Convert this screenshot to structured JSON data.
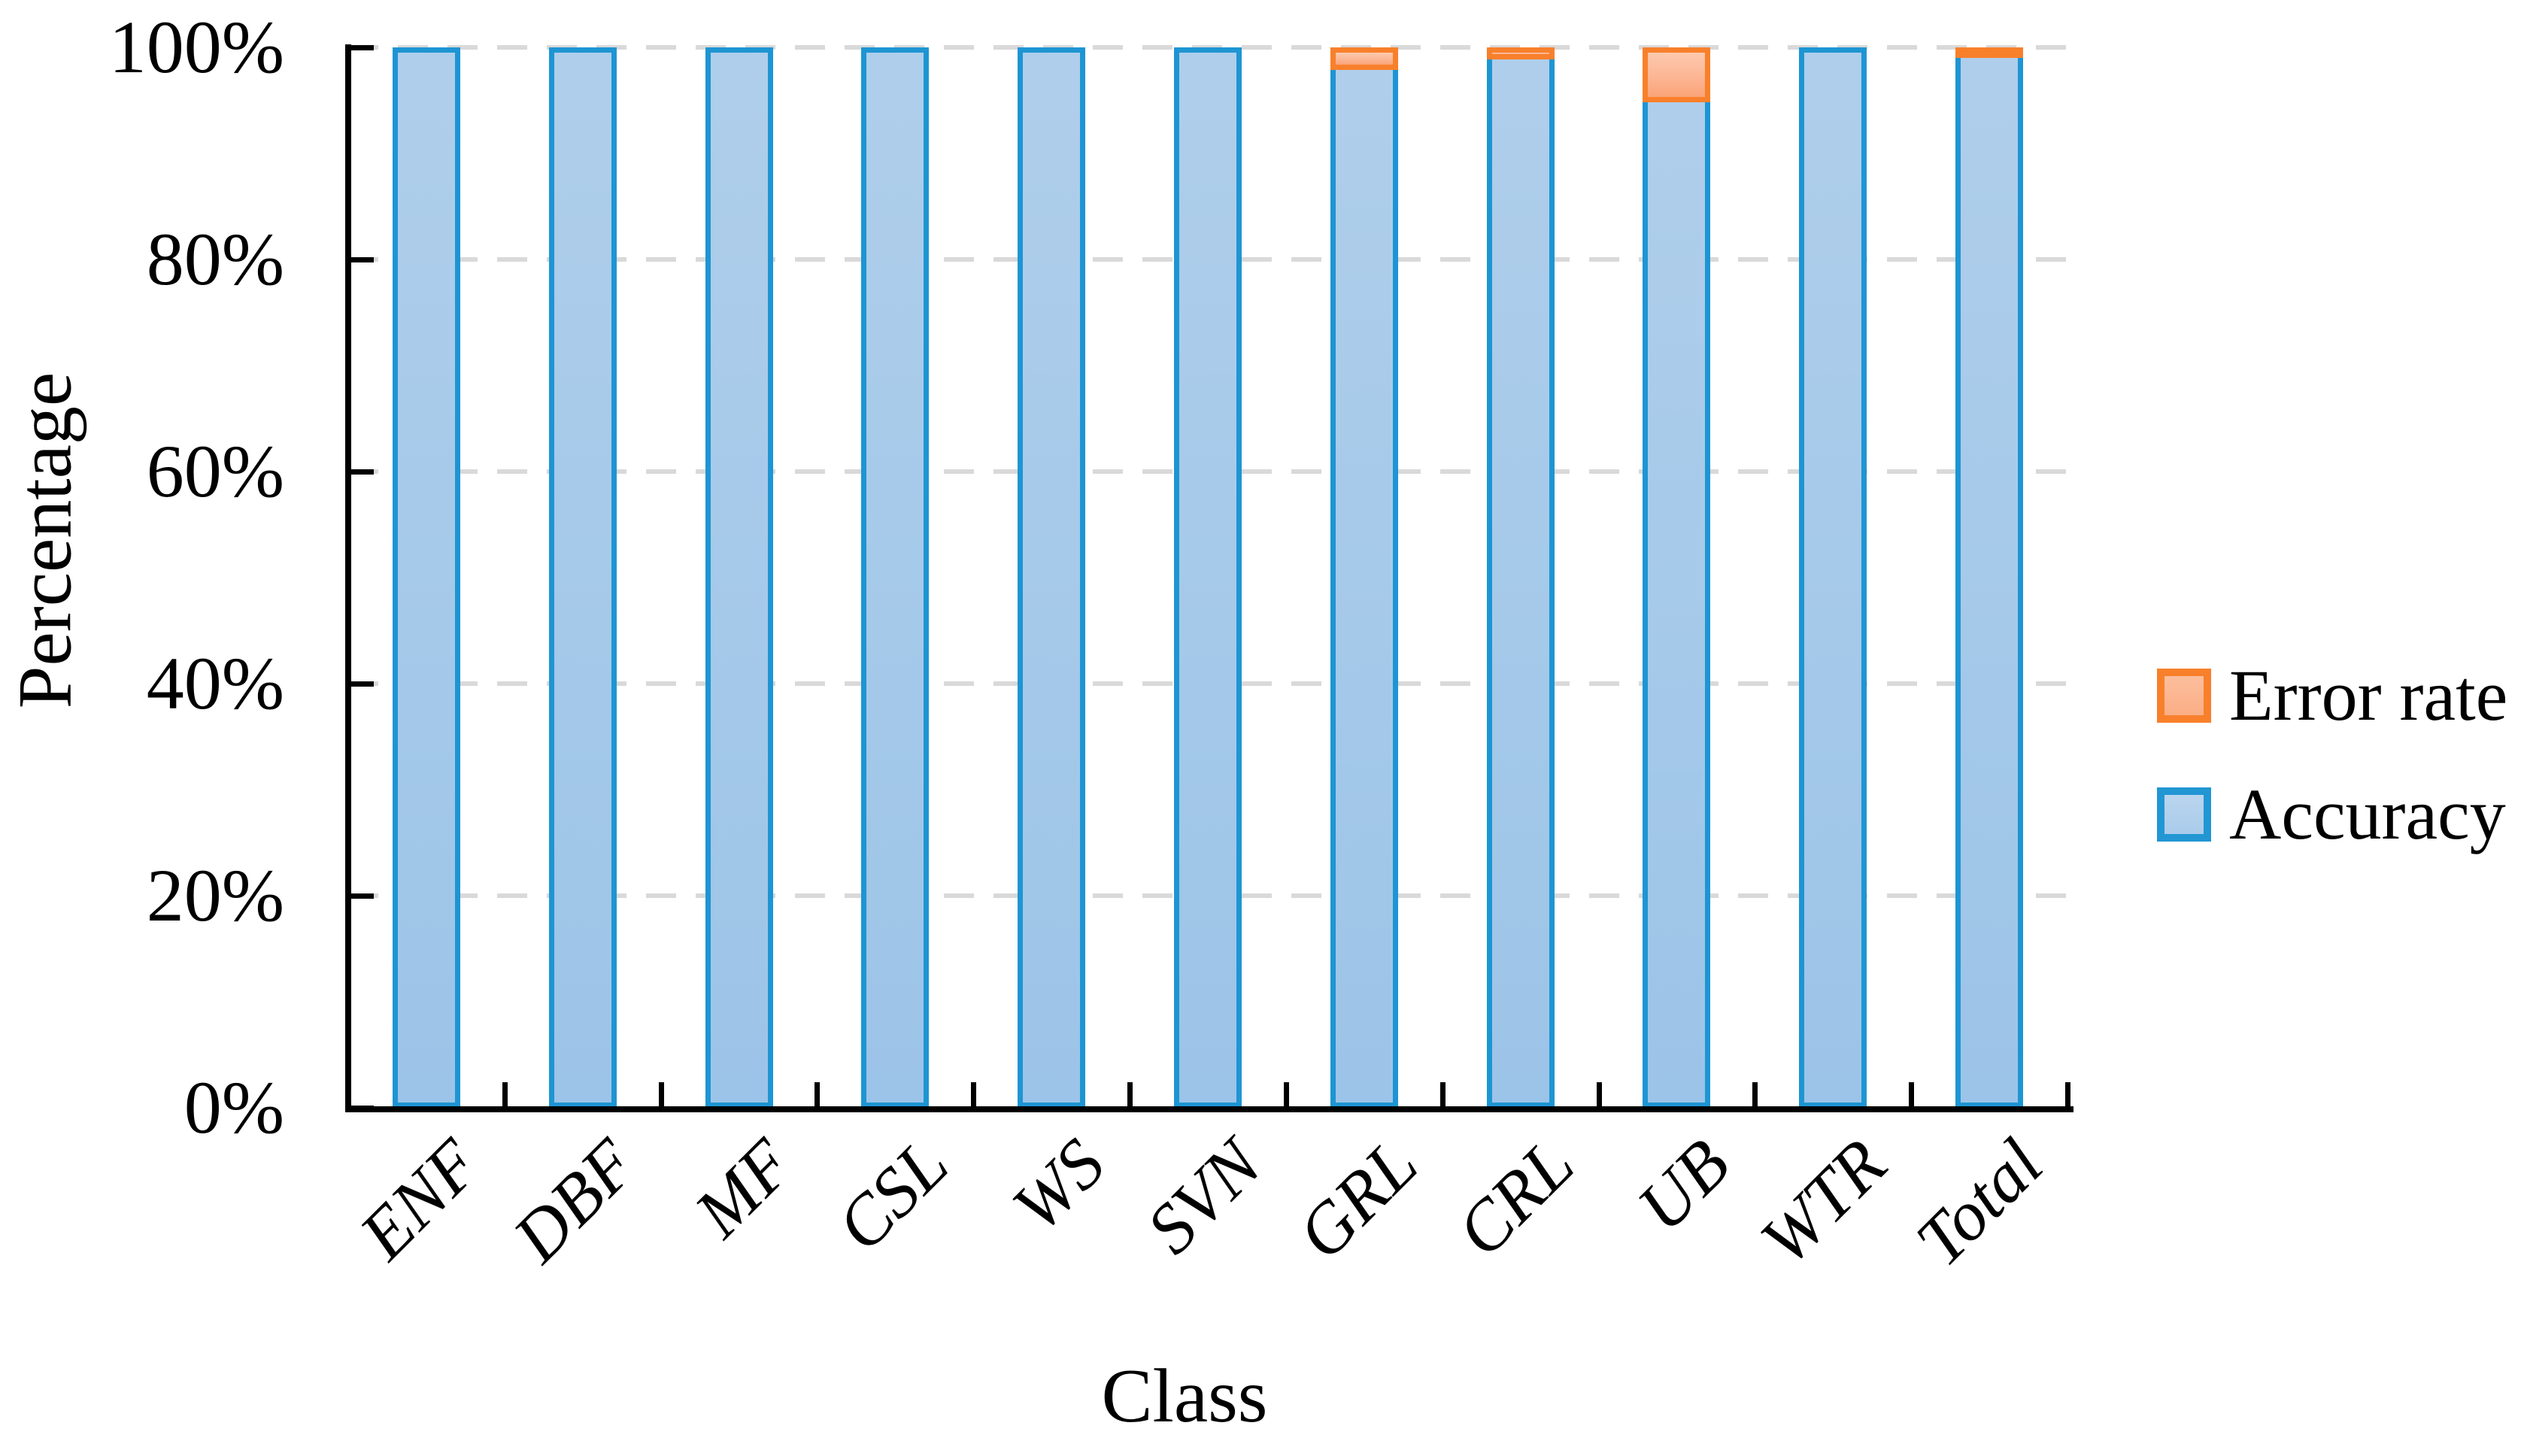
{
  "figure": {
    "background": "#FFFFFF"
  },
  "y_axis": {
    "title": "Percentage",
    "tick_labels": [
      "0%",
      "20%",
      "40%",
      "60%",
      "80%",
      "100%"
    ],
    "tick_values": [
      0,
      20,
      40,
      60,
      80,
      100
    ],
    "range": [
      0,
      100
    ]
  },
  "x_axis": {
    "title": "Class"
  },
  "legend": {
    "position": "right",
    "items": [
      {
        "label": "Error rate",
        "swatch_fill": "#FBAE85",
        "swatch_border": "#F8802B"
      },
      {
        "label": "Accuracy",
        "swatch_fill": "#A9CBEA",
        "swatch_border": "#2196D3"
      }
    ]
  },
  "chart_data": {
    "type": "bar",
    "stacked": true,
    "title": "",
    "xlabel": "Class",
    "ylabel": "Percentage",
    "ylim": [
      0,
      100
    ],
    "yticks": [
      0,
      20,
      40,
      60,
      80,
      100
    ],
    "grid": "horizontal-dashed",
    "gridline_color": "#D9D9D9",
    "legend_position": "right",
    "categories": [
      "ENF",
      "DBF",
      "MF",
      "CSL",
      "WS",
      "SVN",
      "GRL",
      "CRL",
      "UB",
      "WTR",
      "Total"
    ],
    "series": [
      {
        "name": "Accuracy",
        "fill": "#A9CBEA",
        "border": "#1E95D3",
        "values": [
          100,
          100,
          100,
          100,
          100,
          100,
          97.9,
          98.9,
          94.8,
          100,
          99.0
        ]
      },
      {
        "name": "Error rate",
        "fill": "#FBAE85",
        "border": "#F8802B",
        "values": [
          0,
          0,
          0,
          0,
          0,
          0,
          2.1,
          1.1,
          5.2,
          0,
          1.0
        ]
      }
    ]
  }
}
